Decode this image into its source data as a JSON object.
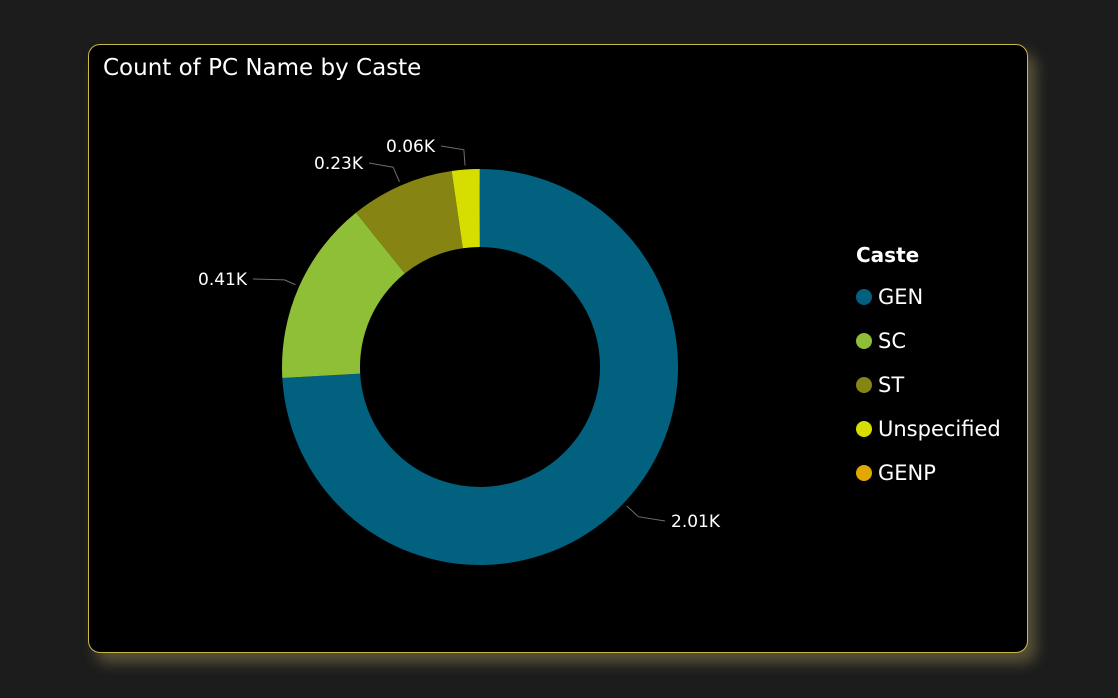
{
  "chart_data": {
    "type": "pie",
    "subtype": "donut",
    "title": "Count of PC Name by Caste",
    "legend_title": "Caste",
    "legend_position": "right",
    "categories": [
      "GEN",
      "SC",
      "ST",
      "Unspecified",
      "GENP"
    ],
    "values": [
      2010,
      410,
      230,
      60,
      2
    ],
    "data_labels": [
      "2.01K",
      "0.41K",
      "0.23K",
      "0.06K",
      ""
    ],
    "colors": [
      "#02617f",
      "#8fbf36",
      "#868513",
      "#d6dd00",
      "#e0a800"
    ]
  }
}
